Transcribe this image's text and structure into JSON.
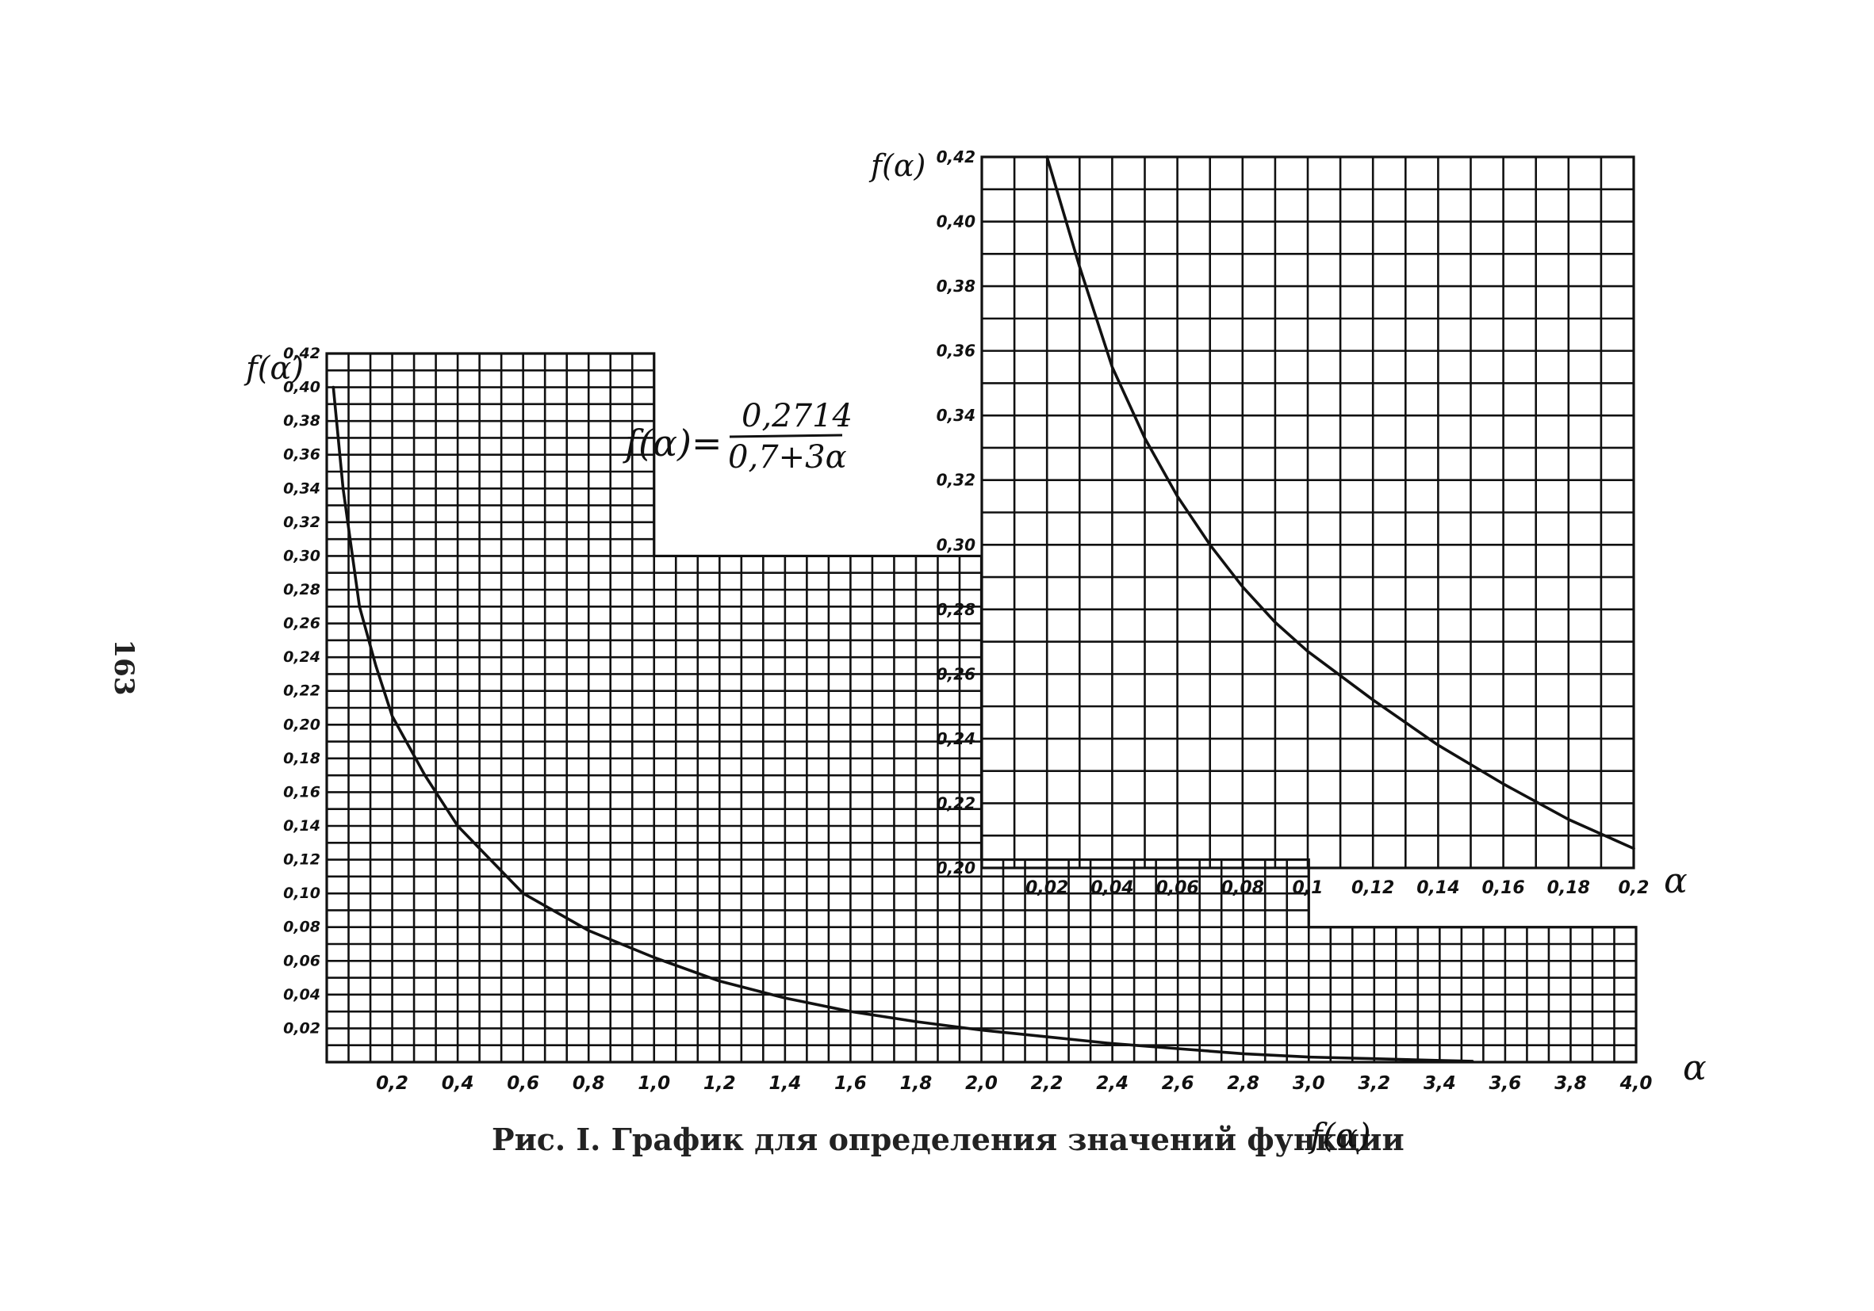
{
  "page_number": "163",
  "caption": "Рис. I. График для определения значений функции",
  "caption_symbol": "f(α)",
  "formula": {
    "lhs": "f(α)=",
    "numerator": "0,2714",
    "denominator": "0,7+3α"
  },
  "chart_data": [
    {
      "type": "line",
      "name": "main",
      "ylabel": "f(α)",
      "xlabel": "α",
      "xlim": [
        0,
        4.0
      ],
      "ylim": [
        0,
        0.42
      ],
      "x_ticks": [
        "0,2",
        "0,4",
        "0,6",
        "0,8",
        "1,0",
        "1,2",
        "1,4",
        "1,6",
        "1,8",
        "2,0",
        "2,2",
        "2,4",
        "2,6",
        "2,8",
        "3,0",
        "3,2",
        "3,4",
        "3,6",
        "3,8",
        "4,0"
      ],
      "y_ticks": [
        "0,02",
        "0,04",
        "0,06",
        "0,08",
        "0,10",
        "0,12",
        "0,14",
        "0,16",
        "0,18",
        "0,20",
        "0,22",
        "0,24",
        "0,26",
        "0,28",
        "0,30",
        "0,32",
        "0,34",
        "0,36",
        "0,38",
        "0,40",
        "0,42"
      ],
      "series": [
        {
          "x": [
            0.02,
            0.05,
            0.1,
            0.15,
            0.2,
            0.3,
            0.4,
            0.5,
            0.6,
            0.8,
            1.0,
            1.2,
            1.4,
            1.6,
            1.8,
            2.0,
            2.2,
            2.4,
            2.6,
            2.8,
            3.0,
            3.2,
            3.4,
            3.5
          ],
          "y": [
            0.4,
            0.34,
            0.27,
            0.235,
            0.205,
            0.17,
            0.14,
            0.12,
            0.1,
            0.078,
            0.062,
            0.048,
            0.038,
            0.03,
            0.024,
            0.019,
            0.015,
            0.011,
            0.008,
            0.005,
            0.003,
            0.002,
            0.001,
            0.0005
          ]
        }
      ]
    },
    {
      "type": "line",
      "name": "inset",
      "ylabel": "f(α)",
      "xlabel": "α",
      "xlim": [
        0,
        0.2
      ],
      "ylim": [
        0.2,
        0.42
      ],
      "x_ticks": [
        "0,02",
        "0,04",
        "0,06",
        "0,08",
        "0,1",
        "0,12",
        "0,14",
        "0,16",
        "0,18",
        "0,2"
      ],
      "y_ticks": [
        "0,20",
        "0,22",
        "0,24",
        "0,26",
        "0,28",
        "0,30",
        "0,32",
        "0,34",
        "0,36",
        "0,38",
        "0,40",
        "0,42"
      ],
      "series": [
        {
          "x": [
            0.02,
            0.03,
            0.04,
            0.05,
            0.06,
            0.07,
            0.08,
            0.09,
            0.1,
            0.12,
            0.14,
            0.16,
            0.18,
            0.2
          ],
          "y": [
            0.42,
            0.386,
            0.355,
            0.333,
            0.315,
            0.3,
            0.287,
            0.276,
            0.267,
            0.252,
            0.238,
            0.226,
            0.215,
            0.206
          ]
        }
      ]
    }
  ]
}
